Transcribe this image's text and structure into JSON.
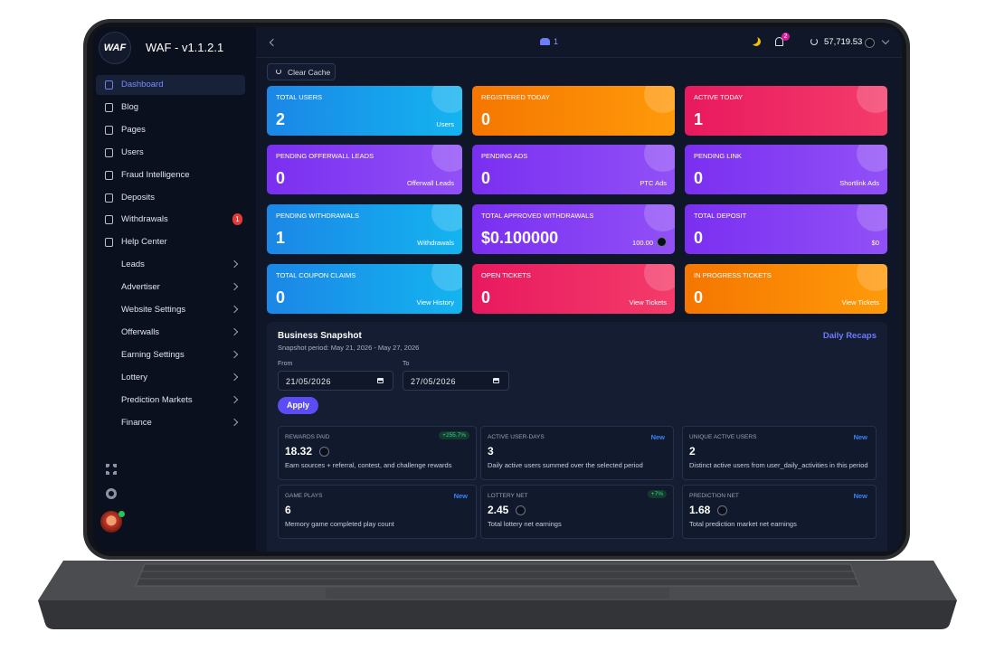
{
  "app": {
    "logo": "WAF",
    "title": "WAF - v1.1.2.1"
  },
  "sidebar": {
    "items": [
      {
        "label": "Dashboard",
        "active": true
      },
      {
        "label": "Blog"
      },
      {
        "label": "Pages"
      },
      {
        "label": "Users"
      },
      {
        "label": "Fraud Intelligence"
      },
      {
        "label": "Deposits"
      },
      {
        "label": "Withdrawals",
        "badge": "1"
      },
      {
        "label": "Help Center"
      },
      {
        "label": "Leads",
        "submenu": true
      },
      {
        "label": "Advertiser",
        "submenu": true
      },
      {
        "label": "Website Settings",
        "submenu": true
      },
      {
        "label": "Offerwalls",
        "submenu": true
      },
      {
        "label": "Earning Settings",
        "submenu": true
      },
      {
        "label": "Lottery",
        "submenu": true
      },
      {
        "label": "Prediction Markets",
        "submenu": true
      },
      {
        "label": "Finance",
        "submenu": true
      }
    ]
  },
  "topbar": {
    "online_users": "1",
    "notifications": "2",
    "balance": "57,719.53"
  },
  "clear_cache": "Clear Cache",
  "cards": [
    {
      "title": "TOTAL USERS",
      "value": "2",
      "link": "Users",
      "color": [
        "#1b86e6",
        "#14b4f0"
      ]
    },
    {
      "title": "REGISTERED TODAY",
      "value": "0",
      "color": [
        "#f57600",
        "#ff9a0a"
      ]
    },
    {
      "title": "ACTIVE TODAY",
      "value": "1",
      "color": [
        "#e8195f",
        "#f43c6a"
      ]
    },
    {
      "title": "PENDING OFFERWALL LEADS",
      "value": "0",
      "link": "Offerwall Leads",
      "color": [
        "#7a2ff0",
        "#9150f7"
      ]
    },
    {
      "title": "PENDING ADS",
      "value": "0",
      "link": "PTC Ads",
      "color": [
        "#7a2ff0",
        "#9150f7"
      ]
    },
    {
      "title": "PENDING LINK",
      "value": "0",
      "link": "Shortlink Ads",
      "color": [
        "#7a2ff0",
        "#9150f7"
      ]
    },
    {
      "title": "PENDING WITHDRAWALS",
      "value": "1",
      "link": "Withdrawals",
      "color": [
        "#1b86e6",
        "#14b4f0"
      ]
    },
    {
      "title": "TOTAL APPROVED WITHDRAWALS",
      "value": "$0.100000",
      "link": "100.00",
      "coin": true,
      "color": [
        "#7a2ff0",
        "#9150f7"
      ]
    },
    {
      "title": "TOTAL DEPOSIT",
      "value": "0",
      "link": "$0",
      "color": [
        "#7a2ff0",
        "#9150f7"
      ]
    },
    {
      "title": "TOTAL COUPON CLAIMS",
      "value": "0",
      "link": "View History",
      "color": [
        "#1b86e6",
        "#14b4f0"
      ]
    },
    {
      "title": "OPEN TICKETS",
      "value": "0",
      "link": "View Tickets",
      "color": [
        "#e8195f",
        "#f43c6a"
      ]
    },
    {
      "title": "IN PROGRESS TICKETS",
      "value": "0",
      "link": "View Tickets",
      "color": [
        "#f57600",
        "#ff9a0a"
      ]
    }
  ],
  "snapshot": {
    "title": "Business Snapshot",
    "period": "Snapshot period: May 21, 2026 - May 27, 2026",
    "link": "Daily Recaps",
    "from_label": "From",
    "from": "21/05/2026",
    "to_label": "To",
    "to": "27/05/2026",
    "apply": "Apply",
    "metrics": [
      {
        "label": "REWARDS PAID",
        "badge": "+255.7%",
        "badge_tone": "green",
        "value": "18.32",
        "coin": true,
        "desc": "Earn sources + referral, contest, and challenge rewards"
      },
      {
        "label": "ACTIVE USER-DAYS",
        "badge": "New",
        "badge_tone": "blue",
        "value": "3",
        "desc": "Daily active users summed over the selected period"
      },
      {
        "label": "UNIQUE ACTIVE USERS",
        "badge": "New",
        "badge_tone": "blue",
        "value": "2",
        "desc": "Distinct active users from user_daily_activities in this period"
      },
      {
        "label": "GAME PLAYS",
        "badge": "New",
        "badge_tone": "blue",
        "value": "6",
        "desc": "Memory game completed play count"
      },
      {
        "label": "LOTTERY NET",
        "badge": "+7%",
        "badge_tone": "green",
        "value": "2.45",
        "coin": true,
        "desc": "Total lottery net earnings"
      },
      {
        "label": "PREDICTION NET",
        "badge": "New",
        "badge_tone": "blue",
        "value": "1.68",
        "coin": true,
        "desc": "Total prediction market net earnings"
      }
    ]
  }
}
